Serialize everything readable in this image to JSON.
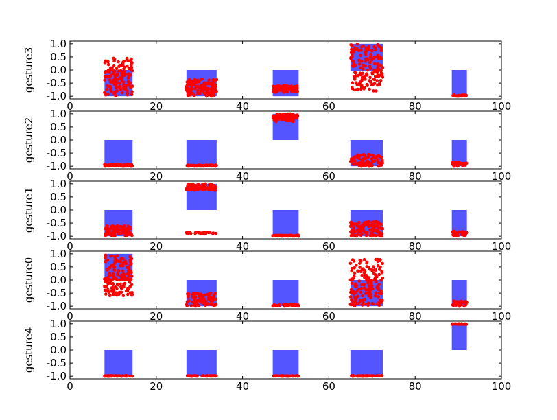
{
  "figure": {
    "background": "#ffffff"
  },
  "chart_data": [
    {
      "type": "scatter",
      "ylabel": "gesture3",
      "xlim": [
        0,
        100
      ],
      "ylim": [
        -1.1,
        1.1
      ],
      "xticks": [
        "0",
        "20",
        "40",
        "60",
        "80",
        "100"
      ],
      "yticks": [
        "-1.0",
        "-0.5",
        "0.0",
        "0.5",
        "1.0"
      ],
      "bar_color": "#5555ff",
      "point_color": "#ff0000",
      "bars": [
        {
          "x0": 8,
          "x1": 14.5,
          "y0": -1.0,
          "y1": 0.0
        },
        {
          "x0": 27,
          "x1": 34,
          "y0": -1.0,
          "y1": 0.0
        },
        {
          "x0": 47,
          "x1": 53,
          "y0": -1.0,
          "y1": 0.0
        },
        {
          "x0": 65,
          "x1": 72.5,
          "y0": -0.05,
          "y1": 1.0
        },
        {
          "x0": 88.5,
          "x1": 92,
          "y0": -1.0,
          "y1": 0.0
        }
      ],
      "point_clusters": [
        {
          "x0": 8,
          "x1": 14.5,
          "ymin": -1.0,
          "ymax": 0.45,
          "n": 140,
          "seed": 1
        },
        {
          "x0": 27,
          "x1": 34,
          "ymin": -1.0,
          "ymax": -0.35,
          "n": 120,
          "seed": 2
        },
        {
          "x0": 47,
          "x1": 53,
          "ymin": -0.85,
          "ymax": -0.6,
          "n": 80,
          "seed": 3
        },
        {
          "x0": 65,
          "x1": 72.5,
          "ymin": -0.8,
          "ymax": 1.0,
          "n": 160,
          "seed": 4
        },
        {
          "x0": 88.5,
          "x1": 92,
          "ymin": -1.0,
          "ymax": -0.95,
          "n": 40,
          "seed": 5
        }
      ]
    },
    {
      "type": "scatter",
      "ylabel": "gesture2",
      "xlim": [
        0,
        100
      ],
      "ylim": [
        -1.1,
        1.1
      ],
      "xticks": [
        "0",
        "20",
        "40",
        "60",
        "80",
        "100"
      ],
      "yticks": [
        "-1.0",
        "-0.5",
        "0.0",
        "0.5",
        "1.0"
      ],
      "bar_color": "#5555ff",
      "point_color": "#ff0000",
      "bars": [
        {
          "x0": 8,
          "x1": 14.5,
          "y0": -1.0,
          "y1": 0.0
        },
        {
          "x0": 27,
          "x1": 34,
          "y0": -1.0,
          "y1": 0.0
        },
        {
          "x0": 47,
          "x1": 53,
          "y0": 0.0,
          "y1": 1.0
        },
        {
          "x0": 65,
          "x1": 72.5,
          "y0": -1.0,
          "y1": 0.0
        },
        {
          "x0": 88.5,
          "x1": 92,
          "y0": -1.0,
          "y1": 0.0
        }
      ],
      "point_clusters": [
        {
          "x0": 8,
          "x1": 14.5,
          "ymin": -1.0,
          "ymax": -0.93,
          "n": 60,
          "seed": 6
        },
        {
          "x0": 27,
          "x1": 34,
          "ymin": -1.0,
          "ymax": -0.95,
          "n": 60,
          "seed": 7
        },
        {
          "x0": 47,
          "x1": 53,
          "ymin": 0.7,
          "ymax": 1.0,
          "n": 80,
          "seed": 8
        },
        {
          "x0": 65,
          "x1": 72.5,
          "ymin": -1.0,
          "ymax": -0.55,
          "n": 80,
          "seed": 9
        },
        {
          "x0": 88.5,
          "x1": 92,
          "ymin": -1.0,
          "ymax": -0.85,
          "n": 30,
          "seed": 10
        }
      ]
    },
    {
      "type": "scatter",
      "ylabel": "gesture1",
      "xlim": [
        0,
        100
      ],
      "ylim": [
        -1.1,
        1.1
      ],
      "xticks": [
        "0",
        "20",
        "40",
        "60",
        "80",
        "100"
      ],
      "yticks": [
        "-1.0",
        "-0.5",
        "0.0",
        "0.5",
        "1.0"
      ],
      "bar_color": "#5555ff",
      "point_color": "#ff0000",
      "bars": [
        {
          "x0": 8,
          "x1": 14.5,
          "y0": -1.0,
          "y1": 0.0
        },
        {
          "x0": 27,
          "x1": 34,
          "y0": 0.0,
          "y1": 1.0
        },
        {
          "x0": 47,
          "x1": 53,
          "y0": -1.0,
          "y1": 0.0
        },
        {
          "x0": 65,
          "x1": 72.5,
          "y0": -1.0,
          "y1": 0.0
        },
        {
          "x0": 88.5,
          "x1": 92,
          "y0": -1.0,
          "y1": 0.0
        }
      ],
      "point_clusters": [
        {
          "x0": 8,
          "x1": 14.5,
          "ymin": -1.0,
          "ymax": -0.6,
          "n": 100,
          "seed": 11
        },
        {
          "x0": 27,
          "x1": 34,
          "ymin": 0.75,
          "ymax": 1.0,
          "n": 100,
          "seed": 12
        },
        {
          "x0": 27,
          "x1": 34,
          "ymin": -0.9,
          "ymax": -0.85,
          "n": 30,
          "seed": 13
        },
        {
          "x0": 47,
          "x1": 53,
          "ymin": -1.0,
          "ymax": -0.96,
          "n": 40,
          "seed": 14
        },
        {
          "x0": 65,
          "x1": 72.5,
          "ymin": -1.0,
          "ymax": -0.45,
          "n": 110,
          "seed": 15
        },
        {
          "x0": 88.5,
          "x1": 92,
          "ymin": -1.0,
          "ymax": -0.8,
          "n": 30,
          "seed": 16
        }
      ]
    },
    {
      "type": "scatter",
      "ylabel": "gesture0",
      "xlim": [
        0,
        100
      ],
      "ylim": [
        -1.1,
        1.1
      ],
      "xticks": [
        "0",
        "20",
        "40",
        "60",
        "80",
        "100"
      ],
      "yticks": [
        "-1.0",
        "-0.5",
        "0.0",
        "0.5",
        "1.0"
      ],
      "bar_color": "#5555ff",
      "point_color": "#ff0000",
      "bars": [
        {
          "x0": 8,
          "x1": 14.5,
          "y0": 0.0,
          "y1": 1.0
        },
        {
          "x0": 27,
          "x1": 34,
          "y0": -1.0,
          "y1": 0.0
        },
        {
          "x0": 47,
          "x1": 53,
          "y0": -1.0,
          "y1": 0.0
        },
        {
          "x0": 65,
          "x1": 72.5,
          "y0": -1.0,
          "y1": 0.0
        },
        {
          "x0": 88.5,
          "x1": 92,
          "y0": -1.0,
          "y1": 0.0
        }
      ],
      "point_clusters": [
        {
          "x0": 8,
          "x1": 14.5,
          "ymin": -0.6,
          "ymax": 0.95,
          "n": 160,
          "seed": 17
        },
        {
          "x0": 27,
          "x1": 34,
          "ymin": -1.0,
          "ymax": -0.5,
          "n": 80,
          "seed": 18
        },
        {
          "x0": 47,
          "x1": 53,
          "ymin": -1.0,
          "ymax": -0.93,
          "n": 40,
          "seed": 19
        },
        {
          "x0": 65,
          "x1": 72.5,
          "ymin": -1.0,
          "ymax": 0.8,
          "n": 170,
          "seed": 20
        },
        {
          "x0": 88.5,
          "x1": 92,
          "ymin": -1.0,
          "ymax": -0.8,
          "n": 30,
          "seed": 21
        }
      ]
    },
    {
      "type": "scatter",
      "ylabel": "gesture4",
      "xlim": [
        0,
        100
      ],
      "ylim": [
        -1.1,
        1.1
      ],
      "xticks": [
        "0",
        "20",
        "40",
        "60",
        "80",
        "100"
      ],
      "yticks": [
        "-1.0",
        "-0.5",
        "0.0",
        "0.5",
        "1.0"
      ],
      "bar_color": "#5555ff",
      "point_color": "#ff0000",
      "bars": [
        {
          "x0": 8,
          "x1": 14.5,
          "y0": -1.0,
          "y1": 0.0
        },
        {
          "x0": 27,
          "x1": 34,
          "y0": -1.0,
          "y1": 0.0
        },
        {
          "x0": 47,
          "x1": 53,
          "y0": -1.0,
          "y1": 0.0
        },
        {
          "x0": 65,
          "x1": 72.5,
          "y0": -1.0,
          "y1": 0.0
        },
        {
          "x0": 88.5,
          "x1": 92,
          "y0": 0.0,
          "y1": 1.0
        }
      ],
      "point_clusters": [
        {
          "x0": 8,
          "x1": 14.5,
          "ymin": -1.0,
          "ymax": -0.98,
          "n": 40,
          "seed": 22
        },
        {
          "x0": 27,
          "x1": 34,
          "ymin": -1.0,
          "ymax": -0.98,
          "n": 40,
          "seed": 23
        },
        {
          "x0": 47,
          "x1": 53,
          "ymin": -1.0,
          "ymax": -0.98,
          "n": 40,
          "seed": 24
        },
        {
          "x0": 65,
          "x1": 72.5,
          "ymin": -1.0,
          "ymax": -0.98,
          "n": 50,
          "seed": 25
        },
        {
          "x0": 88.5,
          "x1": 92,
          "ymin": 0.98,
          "ymax": 1.0,
          "n": 30,
          "seed": 26
        }
      ]
    }
  ]
}
